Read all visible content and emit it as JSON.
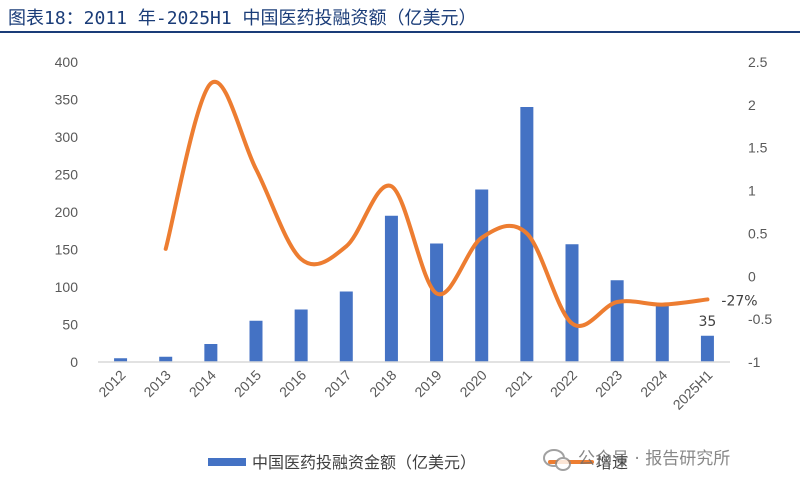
{
  "header": {
    "title": "图表18：2011 年-2025H1 中国医药投融资额（亿美元）"
  },
  "watermark": {
    "text": "公众号 · 报告研究所"
  },
  "colors": {
    "bar": "#4472c4",
    "line": "#ed7d31",
    "title": "#1a3c78",
    "axis": "#d9d9d9",
    "text": "#595959"
  },
  "chart_data": {
    "type": "bar",
    "title": "2011 年-2025H1 中国医药投融资额（亿美元）",
    "categories": [
      "2012",
      "2013",
      "2014",
      "2015",
      "2016",
      "2017",
      "2018",
      "2019",
      "2020",
      "2021",
      "2022",
      "2023",
      "2024",
      "2025H1"
    ],
    "series": [
      {
        "name": "中国医药投融资金额（亿美元）",
        "type": "bar",
        "axis": "left",
        "values": [
          5,
          7,
          24,
          55,
          70,
          94,
          195,
          158,
          230,
          340,
          157,
          109,
          78,
          35
        ]
      },
      {
        "name": "增速",
        "type": "line",
        "axis": "right",
        "smooth": true,
        "values": [
          null,
          0.32,
          2.25,
          1.25,
          0.2,
          0.35,
          1.05,
          -0.2,
          0.45,
          0.5,
          -0.55,
          -0.3,
          -0.33,
          -0.27
        ]
      }
    ],
    "y_left": {
      "ylim": [
        0,
        400
      ],
      "ticks": [
        0,
        50,
        100,
        150,
        200,
        250,
        300,
        350,
        400
      ]
    },
    "y_right": {
      "ylim": [
        -1,
        2.5
      ],
      "ticks": [
        -1,
        -0.5,
        0,
        0.5,
        1,
        1.5,
        2,
        2.5
      ]
    },
    "annotations": [
      {
        "target": "bar",
        "index": 13,
        "text": "35"
      },
      {
        "target": "line",
        "index": 13,
        "text": "-27%"
      }
    ],
    "legend": {
      "position": "bottom",
      "bar_label": "中国医药投融资金额（亿美元）",
      "line_label": "增速"
    },
    "grid": false
  }
}
